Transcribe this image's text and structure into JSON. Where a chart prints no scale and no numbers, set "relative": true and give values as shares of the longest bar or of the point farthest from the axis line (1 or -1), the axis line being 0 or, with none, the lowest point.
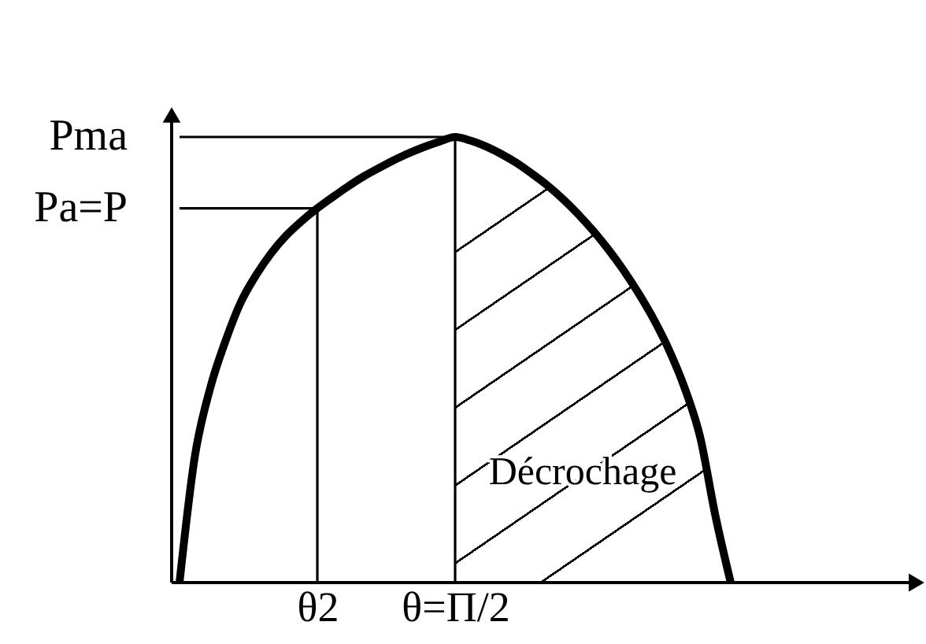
{
  "chart_data": {
    "type": "line",
    "relative": true,
    "categories": [
      null,
      null,
      null,
      null,
      null,
      null,
      null,
      null,
      null,
      "θ2",
      null,
      null,
      null,
      null,
      null,
      null,
      null,
      null,
      "θ=Π/2",
      null,
      null,
      null,
      null,
      null,
      null,
      null,
      null,
      null,
      null,
      null,
      null,
      null,
      null,
      null,
      null,
      null,
      null
    ],
    "annotations": [
      "Pma",
      "Pa=P",
      "Décrochage"
    ],
    "series": [
      {
        "type": "area",
        "color": "#000000",
        "values": [
          null,
          null,
          null,
          null,
          null,
          null,
          null,
          null,
          null,
          null,
          null,
          null,
          null,
          null,
          null,
          null,
          null,
          null,
          1,
          0.992,
          0.979,
          0.962,
          0.942,
          0.918,
          0.892,
          0.862,
          0.828,
          0.79,
          0.748,
          0.701,
          0.648,
          0.589,
          0.52,
          0.436,
          0.327,
          0.15,
          0
        ]
      },
      {
        "color": "#000000",
        "values": [
          0,
          0.283,
          0.436,
          0.542,
          0.629,
          0.69,
          0.74,
          0.78,
          0.812,
          0.84,
          0.865,
          0.889,
          0.911,
          0.93,
          0.948,
          0.964,
          0.978,
          0.99,
          1,
          0.992,
          0.979,
          0.962,
          0.942,
          0.918,
          0.892,
          0.862,
          0.828,
          0.79,
          0.748,
          0.701,
          0.648,
          0.589,
          0.52,
          0.436,
          0.327,
          0.15,
          0
        ]
      },
      {
        "type": "line",
        "color": "#000000",
        "values": [
          1,
          1,
          1,
          1,
          1,
          1,
          1,
          1,
          1,
          1,
          1,
          1,
          1,
          1,
          1,
          1,
          1,
          1,
          1,
          null,
          null,
          null,
          null,
          null,
          null,
          null,
          null,
          null,
          null,
          null,
          null,
          null,
          null,
          null,
          null,
          null,
          null
        ]
      },
      {
        "type": "line",
        "color": "#000000",
        "values": [
          0.84,
          0.84,
          0.84,
          0.84,
          0.84,
          0.84,
          0.84,
          0.84,
          0.84,
          0.84,
          null,
          null,
          null,
          null,
          null,
          null,
          null,
          null,
          null,
          null,
          null,
          null,
          null,
          null,
          null,
          null,
          null,
          null,
          null,
          null,
          null,
          null,
          null,
          null,
          null,
          null,
          null
        ]
      },
      {
        "type": "bar",
        "color": "#000000",
        "values": [
          null,
          null,
          null,
          null,
          null,
          null,
          null,
          null,
          null,
          0.84,
          null,
          null,
          null,
          null,
          null,
          null,
          null,
          null,
          1,
          null,
          null,
          null,
          null,
          null,
          null,
          null,
          null,
          null,
          null,
          null,
          null,
          null,
          null,
          null,
          null,
          null,
          null
        ]
      }
    ]
  }
}
